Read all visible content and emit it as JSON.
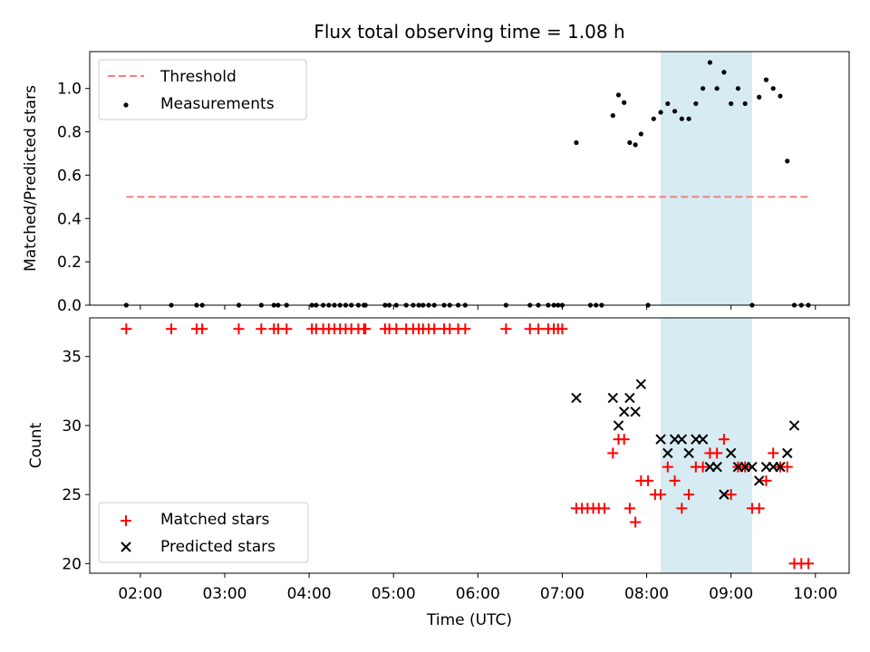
{
  "chart_data": [
    {
      "type": "scatter",
      "title": "Flux total observing time = 1.08 h",
      "ylabel": "Matched/Predicted stars",
      "ylim": [
        0,
        1.17
      ],
      "yticks": [
        "0.0",
        "0.2",
        "0.4",
        "0.6",
        "0.8",
        "1.0"
      ],
      "ytick_values": [
        0,
        0.2,
        0.4,
        0.6,
        0.8,
        1.0
      ],
      "threshold": {
        "name": "Threshold",
        "value": 0.5,
        "x_range": [
          "01:50",
          "09:57"
        ],
        "color": "#f08080"
      },
      "legend": {
        "position": "top-left",
        "entries": [
          "Threshold",
          "Measurements"
        ]
      },
      "shaded_window": {
        "start": "08:10",
        "end": "09:15",
        "color": "#add8e6"
      },
      "series": [
        {
          "name": "Measurements",
          "color": "#000000",
          "x": [
            "01:50",
            "02:22",
            "02:40",
            "02:44",
            "03:10",
            "03:26",
            "03:35",
            "03:38",
            "03:44",
            "04:02",
            "04:05",
            "04:10",
            "04:14",
            "04:18",
            "04:22",
            "04:26",
            "04:30",
            "04:35",
            "04:39",
            "04:40",
            "04:54",
            "04:57",
            "05:02",
            "05:09",
            "05:14",
            "05:18",
            "05:21",
            "05:25",
            "05:29",
            "05:36",
            "05:40",
            "05:46",
            "05:51",
            "06:20",
            "06:37",
            "06:43",
            "06:50",
            "06:54",
            "06:57",
            "07:00",
            "07:10",
            "07:20",
            "07:24",
            "07:28",
            "07:36",
            "07:40",
            "07:44",
            "07:48",
            "07:52",
            "07:56",
            "08:01",
            "08:05",
            "08:10",
            "08:15",
            "08:20",
            "08:25",
            "08:30",
            "08:35",
            "08:40",
            "08:45",
            "08:50",
            "08:55",
            "09:00",
            "09:05",
            "09:10",
            "09:15",
            "09:20",
            "09:25",
            "09:30",
            "09:35",
            "09:40",
            "09:45",
            "09:50",
            "09:55"
          ],
          "y": [
            0,
            0,
            0,
            0,
            0,
            0,
            0,
            0,
            0,
            0,
            0,
            0,
            0,
            0,
            0,
            0,
            0,
            0,
            0,
            0,
            0,
            0,
            0,
            0,
            0,
            0,
            0,
            0,
            0,
            0,
            0,
            0,
            0,
            0,
            0,
            0,
            0,
            0,
            0,
            0,
            0.75,
            0,
            0,
            0,
            0.875,
            0.97,
            0.935,
            0.75,
            0.74,
            0.79,
            0,
            0.86,
            0.89,
            0.93,
            0.895,
            0.86,
            0.86,
            0.93,
            1.0,
            1.12,
            1.0,
            1.075,
            0.93,
            1.0,
            0.93,
            0,
            0.96,
            1.04,
            1.0,
            0.965,
            0.665,
            0,
            0,
            0
          ]
        }
      ]
    },
    {
      "type": "scatter",
      "xlabel": "Time (UTC)",
      "ylabel": "Count",
      "ylim": [
        19.3,
        37.8
      ],
      "yticks": [
        "20",
        "25",
        "30",
        "35"
      ],
      "ytick_values": [
        20,
        25,
        30,
        35
      ],
      "xlim": [
        "01:24",
        "10:24"
      ],
      "xticks": [
        "02:00",
        "03:00",
        "04:00",
        "05:00",
        "06:00",
        "07:00",
        "08:00",
        "09:00",
        "10:00"
      ],
      "legend": {
        "position": "bottom-left",
        "entries": [
          "Matched stars",
          "Predicted stars"
        ]
      },
      "shaded_window": {
        "start": "08:10",
        "end": "09:15",
        "color": "#add8e6"
      },
      "series": [
        {
          "name": "Matched stars",
          "marker": "plus",
          "color": "#ff0000",
          "x": [
            "01:50",
            "02:22",
            "02:40",
            "02:44",
            "03:10",
            "03:26",
            "03:35",
            "03:38",
            "03:44",
            "04:02",
            "04:05",
            "04:10",
            "04:14",
            "04:18",
            "04:22",
            "04:26",
            "04:30",
            "04:35",
            "04:39",
            "04:40",
            "04:54",
            "04:57",
            "05:02",
            "05:09",
            "05:14",
            "05:18",
            "05:21",
            "05:25",
            "05:29",
            "05:36",
            "05:40",
            "05:46",
            "05:51",
            "06:20",
            "06:37",
            "06:43",
            "06:50",
            "06:54",
            "06:57",
            "07:00",
            "07:10",
            "07:14",
            "07:18",
            "07:22",
            "07:26",
            "07:30",
            "07:36",
            "07:40",
            "07:44",
            "07:48",
            "07:52",
            "07:56",
            "08:01",
            "08:06",
            "08:10",
            "08:15",
            "08:20",
            "08:25",
            "08:30",
            "08:35",
            "08:40",
            "08:45",
            "08:50",
            "08:55",
            "09:00",
            "09:05",
            "09:10",
            "09:15",
            "09:20",
            "09:25",
            "09:30",
            "09:35",
            "09:40",
            "09:45",
            "09:50",
            "09:55"
          ],
          "y": [
            37,
            37,
            37,
            37,
            37,
            37,
            37,
            37,
            37,
            37,
            37,
            37,
            37,
            37,
            37,
            37,
            37,
            37,
            37,
            37,
            37,
            37,
            37,
            37,
            37,
            37,
            37,
            37,
            37,
            37,
            37,
            37,
            37,
            37,
            37,
            37,
            37,
            37,
            37,
            37,
            24,
            24,
            24,
            24,
            24,
            24,
            28,
            29,
            29,
            24,
            23,
            26,
            26,
            25,
            25,
            27,
            26,
            24,
            25,
            27,
            27,
            28,
            28,
            29,
            25,
            27,
            27,
            24,
            24,
            26,
            28,
            27,
            27,
            20,
            20,
            20
          ]
        },
        {
          "name": "Predicted stars",
          "marker": "x",
          "color": "#000000",
          "x": [
            "07:10",
            "07:36",
            "07:40",
            "07:44",
            "07:48",
            "07:52",
            "07:56",
            "08:10",
            "08:15",
            "08:20",
            "08:25",
            "08:30",
            "08:35",
            "08:40",
            "08:45",
            "08:50",
            "08:55",
            "09:00",
            "09:05",
            "09:10",
            "09:15",
            "09:20",
            "09:25",
            "09:30",
            "09:35",
            "09:40",
            "09:45"
          ],
          "y": [
            32,
            32,
            30,
            31,
            32,
            31,
            33,
            29,
            28,
            29,
            29,
            28,
            29,
            29,
            27,
            27,
            25,
            28,
            27,
            27,
            27,
            26,
            27,
            27,
            27,
            28,
            30
          ]
        }
      ]
    }
  ]
}
